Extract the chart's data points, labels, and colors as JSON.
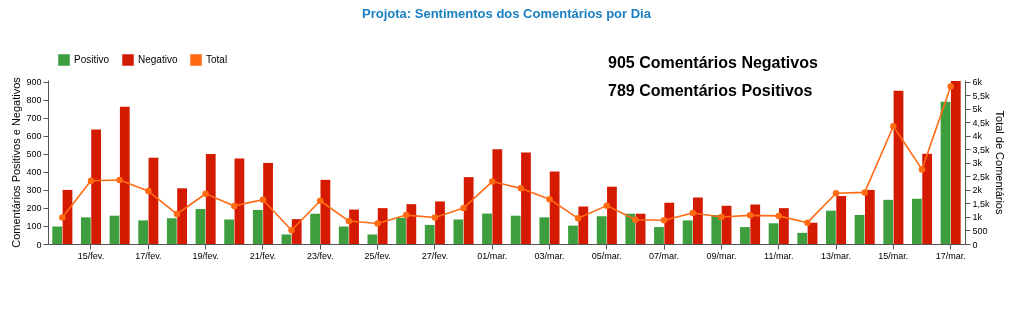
{
  "chart_data": {
    "type": "bar",
    "title": "Projota: Sentimentos dos Comentários por Dia",
    "categories": [
      null,
      "15/fev.",
      null,
      "17/fev.",
      null,
      "19/fev.",
      null,
      "21/fev.",
      null,
      "23/fev.",
      null,
      "25/fev.",
      null,
      "27/fev.",
      null,
      "01/mar.",
      null,
      "03/mar.",
      null,
      "05/mar.",
      null,
      "07/mar.",
      null,
      "09/mar.",
      null,
      "11/mar.",
      null,
      "13/mar.",
      null,
      "15/mar.",
      null,
      "17/mar."
    ],
    "series": [
      {
        "name": "Positivo",
        "color": "#3e9e3e",
        "values": [
          97,
          148,
          157,
          131,
          143,
          194,
          136,
          189,
          53,
          168,
          97,
          53,
          145,
          106,
          136,
          169,
          157,
          148,
          102,
          154,
          168,
          94,
          131,
          161,
          94,
          115,
          62,
          185,
          161,
          245,
          251,
          789
        ]
      },
      {
        "name": "Negativo",
        "color": "#d41a00",
        "values": [
          300,
          635,
          762,
          478,
          309,
          499,
          475,
          450,
          138,
          356,
          191,
          199,
          221,
          236,
          371,
          526,
          508,
          402,
          208,
          318,
          168,
          229,
          258,
          212,
          219,
          199,
          118,
          266,
          300,
          851,
          501,
          905
        ]
      },
      {
        "name": "Total",
        "type": "line",
        "axis": "y2",
        "color": "#ff6a13",
        "marker": "circle",
        "values": [
          980,
          2340,
          2370,
          1960,
          1110,
          1860,
          1410,
          1640,
          510,
          1600,
          850,
          760,
          1070,
          980,
          1330,
          2310,
          2060,
          1660,
          950,
          1420,
          900,
          880,
          1150,
          1000,
          1060,
          1040,
          790,
          1880,
          1910,
          4360,
          2760,
          5830
        ]
      }
    ],
    "ylabel": "Comentários Positivos e Negativos",
    "y2label": "Total de Comentários",
    "ylim": [
      0,
      910
    ],
    "yticks": [
      0,
      100,
      200,
      300,
      400,
      500,
      600,
      700,
      800,
      900
    ],
    "y2lim": [
      0,
      6070
    ],
    "y2ticks": [
      0,
      500,
      {
        "value": 1000,
        "label": "1k"
      },
      {
        "value": 1500,
        "label": "1,5k"
      },
      {
        "value": 2000,
        "label": "2k"
      },
      {
        "value": 2500,
        "label": "2,5k"
      },
      {
        "value": 3000,
        "label": "3k"
      },
      {
        "value": 3500,
        "label": "3,5k"
      },
      {
        "value": 4000,
        "label": "4k"
      },
      {
        "value": 4500,
        "label": "4,5k"
      },
      {
        "value": 5000,
        "label": "5k"
      },
      {
        "value": 5500,
        "label": "5,5k"
      },
      {
        "value": 6000,
        "label": "6k"
      }
    ],
    "annotations": [
      "905 Comentários Negativos",
      "789 Comentários Positivos"
    ],
    "legend": "top left",
    "grid": false
  }
}
